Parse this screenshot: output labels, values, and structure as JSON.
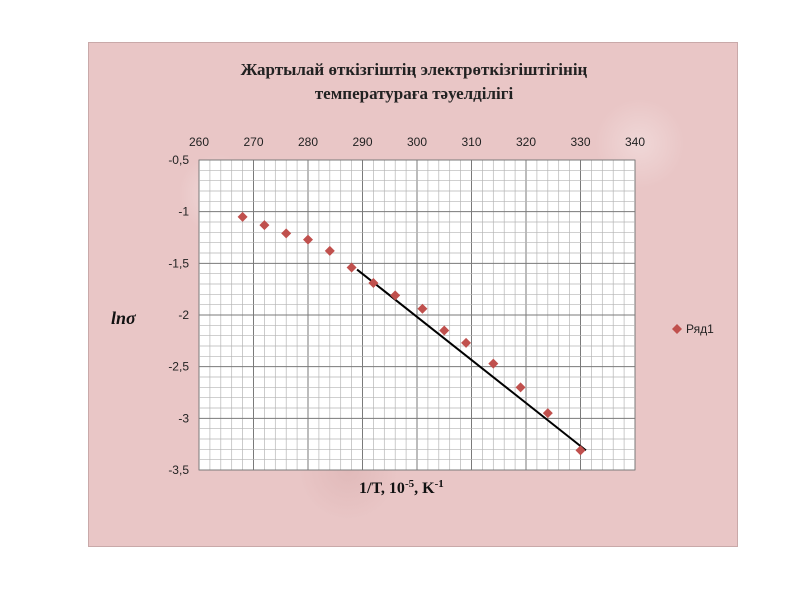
{
  "chart_data": {
    "type": "scatter",
    "title_line1": "Жартылай өткізгіштің электрөткізгіштігінің",
    "title_line2": "температураға тәуелділігі",
    "xlabel": "1/T, 10",
    "xlabel_sup1": "-5",
    "xlabel_mid": ", K",
    "xlabel_sup2": "-1",
    "ylabel": "lnσ",
    "xlim": [
      260,
      340
    ],
    "ylim": [
      -3.5,
      -0.5
    ],
    "x_ticks": [
      "260",
      "270",
      "280",
      "290",
      "300",
      "310",
      "320",
      "330",
      "340"
    ],
    "y_ticks": [
      "-0,5",
      "-1",
      "-1,5",
      "-2",
      "-2,5",
      "-3",
      "-3,5"
    ],
    "grid": true,
    "x_axis_position": "top",
    "legend_position": "right",
    "series": [
      {
        "name": "Ряд1",
        "color": "#c0504d",
        "marker": "diamond",
        "x": [
          268,
          272,
          276,
          280,
          284,
          288,
          292,
          296,
          301,
          305,
          309,
          314,
          319,
          324,
          330
        ],
        "y": [
          -1.05,
          -1.13,
          -1.21,
          -1.27,
          -1.38,
          -1.54,
          -1.69,
          -1.81,
          -1.94,
          -2.15,
          -2.27,
          -2.47,
          -2.7,
          -2.95,
          -3.31
        ]
      }
    ],
    "trendline": {
      "color": "#000000",
      "x": [
        289,
        331
      ],
      "y": [
        -1.56,
        -3.31
      ]
    }
  }
}
